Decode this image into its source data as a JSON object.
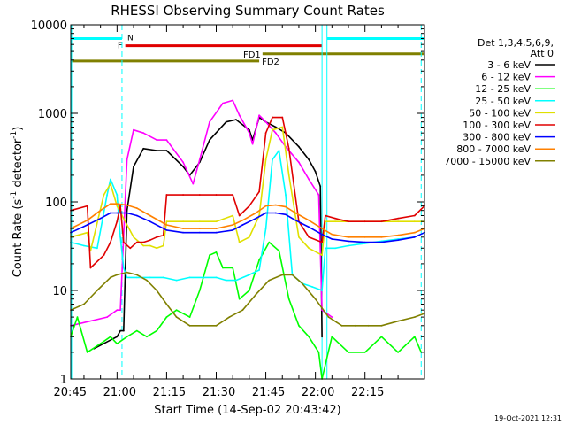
{
  "chart_data": {
    "type": "line",
    "title": "RHESSI Observing Summary Count Rates",
    "xlabel": "Start Time (14-Sep-02 20:43:42)",
    "ylabel_main": "Count Rate (s",
    "ylabel_sup1": "-1",
    "ylabel_mid": " detector",
    "ylabel_sup2": "-1",
    "ylabel_end": ")",
    "yscale": "log",
    "ylim": [
      1,
      10000
    ],
    "xlim_minutes": [
      -14,
      93
    ],
    "x_ticks": [
      {
        "label": "20:45",
        "minute": -15
      },
      {
        "label": "21:00",
        "minute": 0
      },
      {
        "label": "21:15",
        "minute": 15
      },
      {
        "label": "21:30",
        "minute": 30
      },
      {
        "label": "21:45",
        "minute": 45
      },
      {
        "label": "22:00",
        "minute": 60
      },
      {
        "label": "22:15",
        "minute": 75
      }
    ],
    "y_ticks": [
      {
        "label": "1",
        "value": 1
      },
      {
        "label": "10",
        "value": 10
      },
      {
        "label": "100",
        "value": 100
      },
      {
        "label": "1000",
        "value": 1000
      },
      {
        "label": "10000",
        "value": 10000
      }
    ],
    "legend_header": [
      "Det 1,3,4,5,6,9,",
      "Att 0"
    ],
    "legend_placement": "right",
    "flags": [
      {
        "name": "N",
        "color": "#00ffff",
        "segments": [
          [
            -14,
            1.5
          ],
          [
            63.5,
            93
          ]
        ],
        "level": 7000
      },
      {
        "name": "F",
        "color": "#e00000",
        "segments": [
          [
            2.5,
            62
          ]
        ],
        "level": 5800
      },
      {
        "name": "FD1",
        "color": "#808000",
        "segments": [
          [
            44,
            93
          ]
        ],
        "level": 4700
      },
      {
        "name": "FD2",
        "color": "#808000",
        "segments": [
          [
            -14,
            43
          ]
        ],
        "level": 3900
      }
    ],
    "vlines": [
      {
        "minute": -14,
        "style": "solid",
        "color": "#00ffff"
      },
      {
        "minute": 1.5,
        "style": "dashed",
        "color": "#00ffff"
      },
      {
        "minute": 62,
        "style": "solid",
        "color": "#00ffff"
      },
      {
        "minute": 63.5,
        "style": "solid",
        "color": "#00ffff"
      },
      {
        "minute": 92,
        "style": "dashed",
        "color": "#00ffff"
      }
    ],
    "series": [
      {
        "name": "3 - 6 keV",
        "color": "#000000",
        "x": [
          -7,
          0,
          1,
          2,
          3,
          5,
          8,
          12,
          15,
          20,
          22,
          25,
          28,
          33,
          36,
          40,
          41,
          43,
          45,
          48,
          51,
          55,
          58,
          60,
          61.5,
          62
        ],
        "y": [
          2.2,
          3,
          3.5,
          3.5,
          80,
          250,
          400,
          380,
          380,
          250,
          200,
          280,
          500,
          800,
          850,
          650,
          500,
          900,
          800,
          700,
          600,
          420,
          300,
          220,
          150,
          3
        ]
      },
      {
        "name": "6 - 12 keV",
        "color": "#ff00ff",
        "x": [
          -14,
          -3,
          0,
          1,
          3,
          5,
          8,
          12,
          15,
          20,
          23,
          25,
          28,
          32,
          35,
          37,
          40,
          41,
          43,
          45,
          48,
          51,
          55,
          58,
          61,
          62,
          65
        ],
        "y": [
          4,
          5,
          6,
          6,
          300,
          650,
          600,
          500,
          500,
          280,
          160,
          300,
          800,
          1300,
          1400,
          950,
          600,
          450,
          950,
          800,
          600,
          420,
          280,
          180,
          120,
          6,
          5
        ]
      },
      {
        "name": "12 - 25 keV",
        "color": "#00ff00",
        "x": [
          -14,
          -12,
          -9,
          -5,
          -2,
          0,
          3,
          6,
          9,
          12,
          15,
          18,
          22,
          25,
          28,
          30,
          32,
          35,
          37,
          40,
          43,
          46,
          49,
          52,
          55,
          58,
          61,
          62,
          65,
          70,
          75,
          80,
          85,
          90,
          92
        ],
        "y": [
          3,
          5,
          2,
          2.5,
          3,
          2.5,
          3,
          3.5,
          3,
          3.5,
          5,
          6,
          5,
          10,
          25,
          27,
          18,
          18,
          8,
          10,
          22,
          35,
          28,
          8,
          4,
          3,
          2,
          1,
          3,
          2,
          2,
          3,
          2,
          3,
          2
        ]
      },
      {
        "name": "25 - 50 keV",
        "color": "#00ffff",
        "x": [
          -14,
          -10,
          -6,
          -3,
          -2,
          0,
          1,
          2,
          3,
          6,
          10,
          14,
          18,
          22,
          26,
          30,
          33,
          36,
          40,
          43,
          45,
          47,
          49,
          51,
          53,
          56,
          59,
          62,
          63,
          66,
          70,
          75,
          80,
          85,
          90,
          93
        ],
        "y": [
          35,
          32,
          30,
          120,
          180,
          120,
          40,
          18,
          14,
          14,
          14,
          14,
          13,
          14,
          14,
          14,
          13,
          13,
          15,
          17,
          50,
          300,
          380,
          120,
          15,
          12,
          11,
          10,
          30,
          30,
          32,
          34,
          36,
          38,
          40,
          45
        ]
      },
      {
        "name": "50 - 100 keV",
        "color": "#e0e000",
        "x": [
          -14,
          -9,
          -8,
          -4,
          -2,
          0,
          2,
          5,
          8,
          10,
          12,
          14,
          15,
          20,
          25,
          30,
          35,
          37,
          40,
          43,
          45,
          47,
          50,
          52,
          55,
          58,
          62,
          63,
          66,
          70,
          75,
          80,
          85,
          90,
          93
        ],
        "y": [
          40,
          45,
          28,
          120,
          160,
          90,
          65,
          40,
          32,
          32,
          30,
          32,
          60,
          60,
          60,
          60,
          70,
          35,
          40,
          70,
          300,
          650,
          700,
          200,
          40,
          30,
          25,
          60,
          60,
          60,
          60,
          60,
          60,
          60,
          60
        ]
      },
      {
        "name": "100 - 300 keV",
        "color": "#e00000",
        "x": [
          -14,
          -9,
          -8,
          -4,
          -2,
          0,
          1,
          2,
          4,
          6,
          8,
          10,
          12,
          14,
          15,
          20,
          25,
          30,
          35,
          37,
          40,
          43,
          45,
          47,
          50,
          52,
          55,
          58,
          62,
          63,
          66,
          70,
          75,
          80,
          85,
          90,
          93
        ],
        "y": [
          80,
          90,
          18,
          25,
          35,
          60,
          90,
          35,
          30,
          35,
          35,
          37,
          40,
          42,
          120,
          120,
          120,
          120,
          120,
          70,
          90,
          130,
          600,
          900,
          900,
          400,
          60,
          40,
          35,
          70,
          65,
          60,
          60,
          60,
          65,
          70,
          90
        ]
      },
      {
        "name": "300 - 800 keV",
        "color": "#0000ff",
        "x": [
          -14,
          -9,
          -5,
          -2,
          0,
          3,
          6,
          10,
          15,
          20,
          25,
          30,
          35,
          38,
          42,
          45,
          48,
          51,
          54,
          58,
          62,
          65,
          70,
          75,
          80,
          85,
          90,
          93
        ],
        "y": [
          45,
          55,
          65,
          75,
          75,
          75,
          70,
          60,
          48,
          45,
          45,
          45,
          48,
          55,
          65,
          75,
          75,
          72,
          62,
          52,
          43,
          38,
          36,
          35,
          35,
          37,
          40,
          45
        ]
      },
      {
        "name": "800 - 7000 keV",
        "color": "#ff8000",
        "x": [
          -14,
          -9,
          -5,
          -2,
          0,
          3,
          6,
          10,
          15,
          20,
          25,
          30,
          35,
          38,
          42,
          45,
          48,
          51,
          54,
          58,
          62,
          65,
          70,
          75,
          80,
          85,
          90,
          93
        ],
        "y": [
          50,
          62,
          80,
          95,
          95,
          92,
          85,
          70,
          55,
          50,
          50,
          50,
          55,
          62,
          75,
          90,
          92,
          88,
          75,
          62,
          50,
          43,
          40,
          40,
          40,
          42,
          45,
          50
        ]
      },
      {
        "name": "7000 - 15000 keV",
        "color": "#808000",
        "x": [
          -14,
          -10,
          -6,
          -2,
          0,
          3,
          6,
          9,
          12,
          15,
          18,
          22,
          26,
          30,
          34,
          38,
          42,
          46,
          50,
          53,
          56,
          60,
          64,
          68,
          72,
          76,
          80,
          85,
          90,
          93
        ],
        "y": [
          6,
          7,
          10,
          14,
          15,
          16,
          15,
          13,
          10,
          7,
          5,
          4,
          4,
          4,
          5,
          6,
          9,
          13,
          15,
          15,
          12,
          8,
          5,
          4,
          4,
          4,
          4,
          4.5,
          5,
          5.5
        ]
      }
    ]
  },
  "footer_timestamp": "19-Oct-2021 12:31"
}
